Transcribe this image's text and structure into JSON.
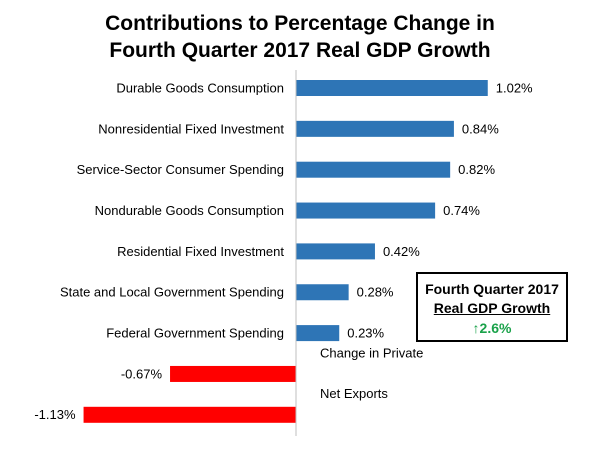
{
  "chart_data": {
    "type": "bar",
    "orientation": "horizontal",
    "title": [
      "Contributions to Percentage Change in",
      "Fourth Quarter 2017 Real GDP Growth"
    ],
    "categories": [
      "Durable Goods Consumption",
      "Nonresidential Fixed Investment",
      "Service-Sector Consumer Spending",
      "Nondurable Goods Consumption",
      "Residential Fixed Investment",
      "State and Local Government Spending",
      "Federal Government Spending",
      "Change in Private",
      "Net Exports"
    ],
    "values": [
      1.02,
      0.84,
      0.82,
      0.74,
      0.42,
      0.28,
      0.23,
      -0.67,
      -1.13
    ],
    "value_labels": [
      "1.02%",
      "0.84%",
      "0.82%",
      "0.74%",
      "0.42%",
      "0.28%",
      "0.23%",
      "-0.67%",
      "-1.13%"
    ],
    "colors": {
      "positive": "#2e75b6",
      "negative": "#ff0000",
      "axis": "#bfbfbf"
    },
    "xlim": [
      -1.13,
      1.02
    ],
    "grid": false,
    "legend": "none",
    "callout": {
      "line1": "Fourth Quarter 2017",
      "line2": "Real GDP Growth",
      "arrow": "↑",
      "value": "2.6%",
      "color": "#1aa24a"
    }
  }
}
